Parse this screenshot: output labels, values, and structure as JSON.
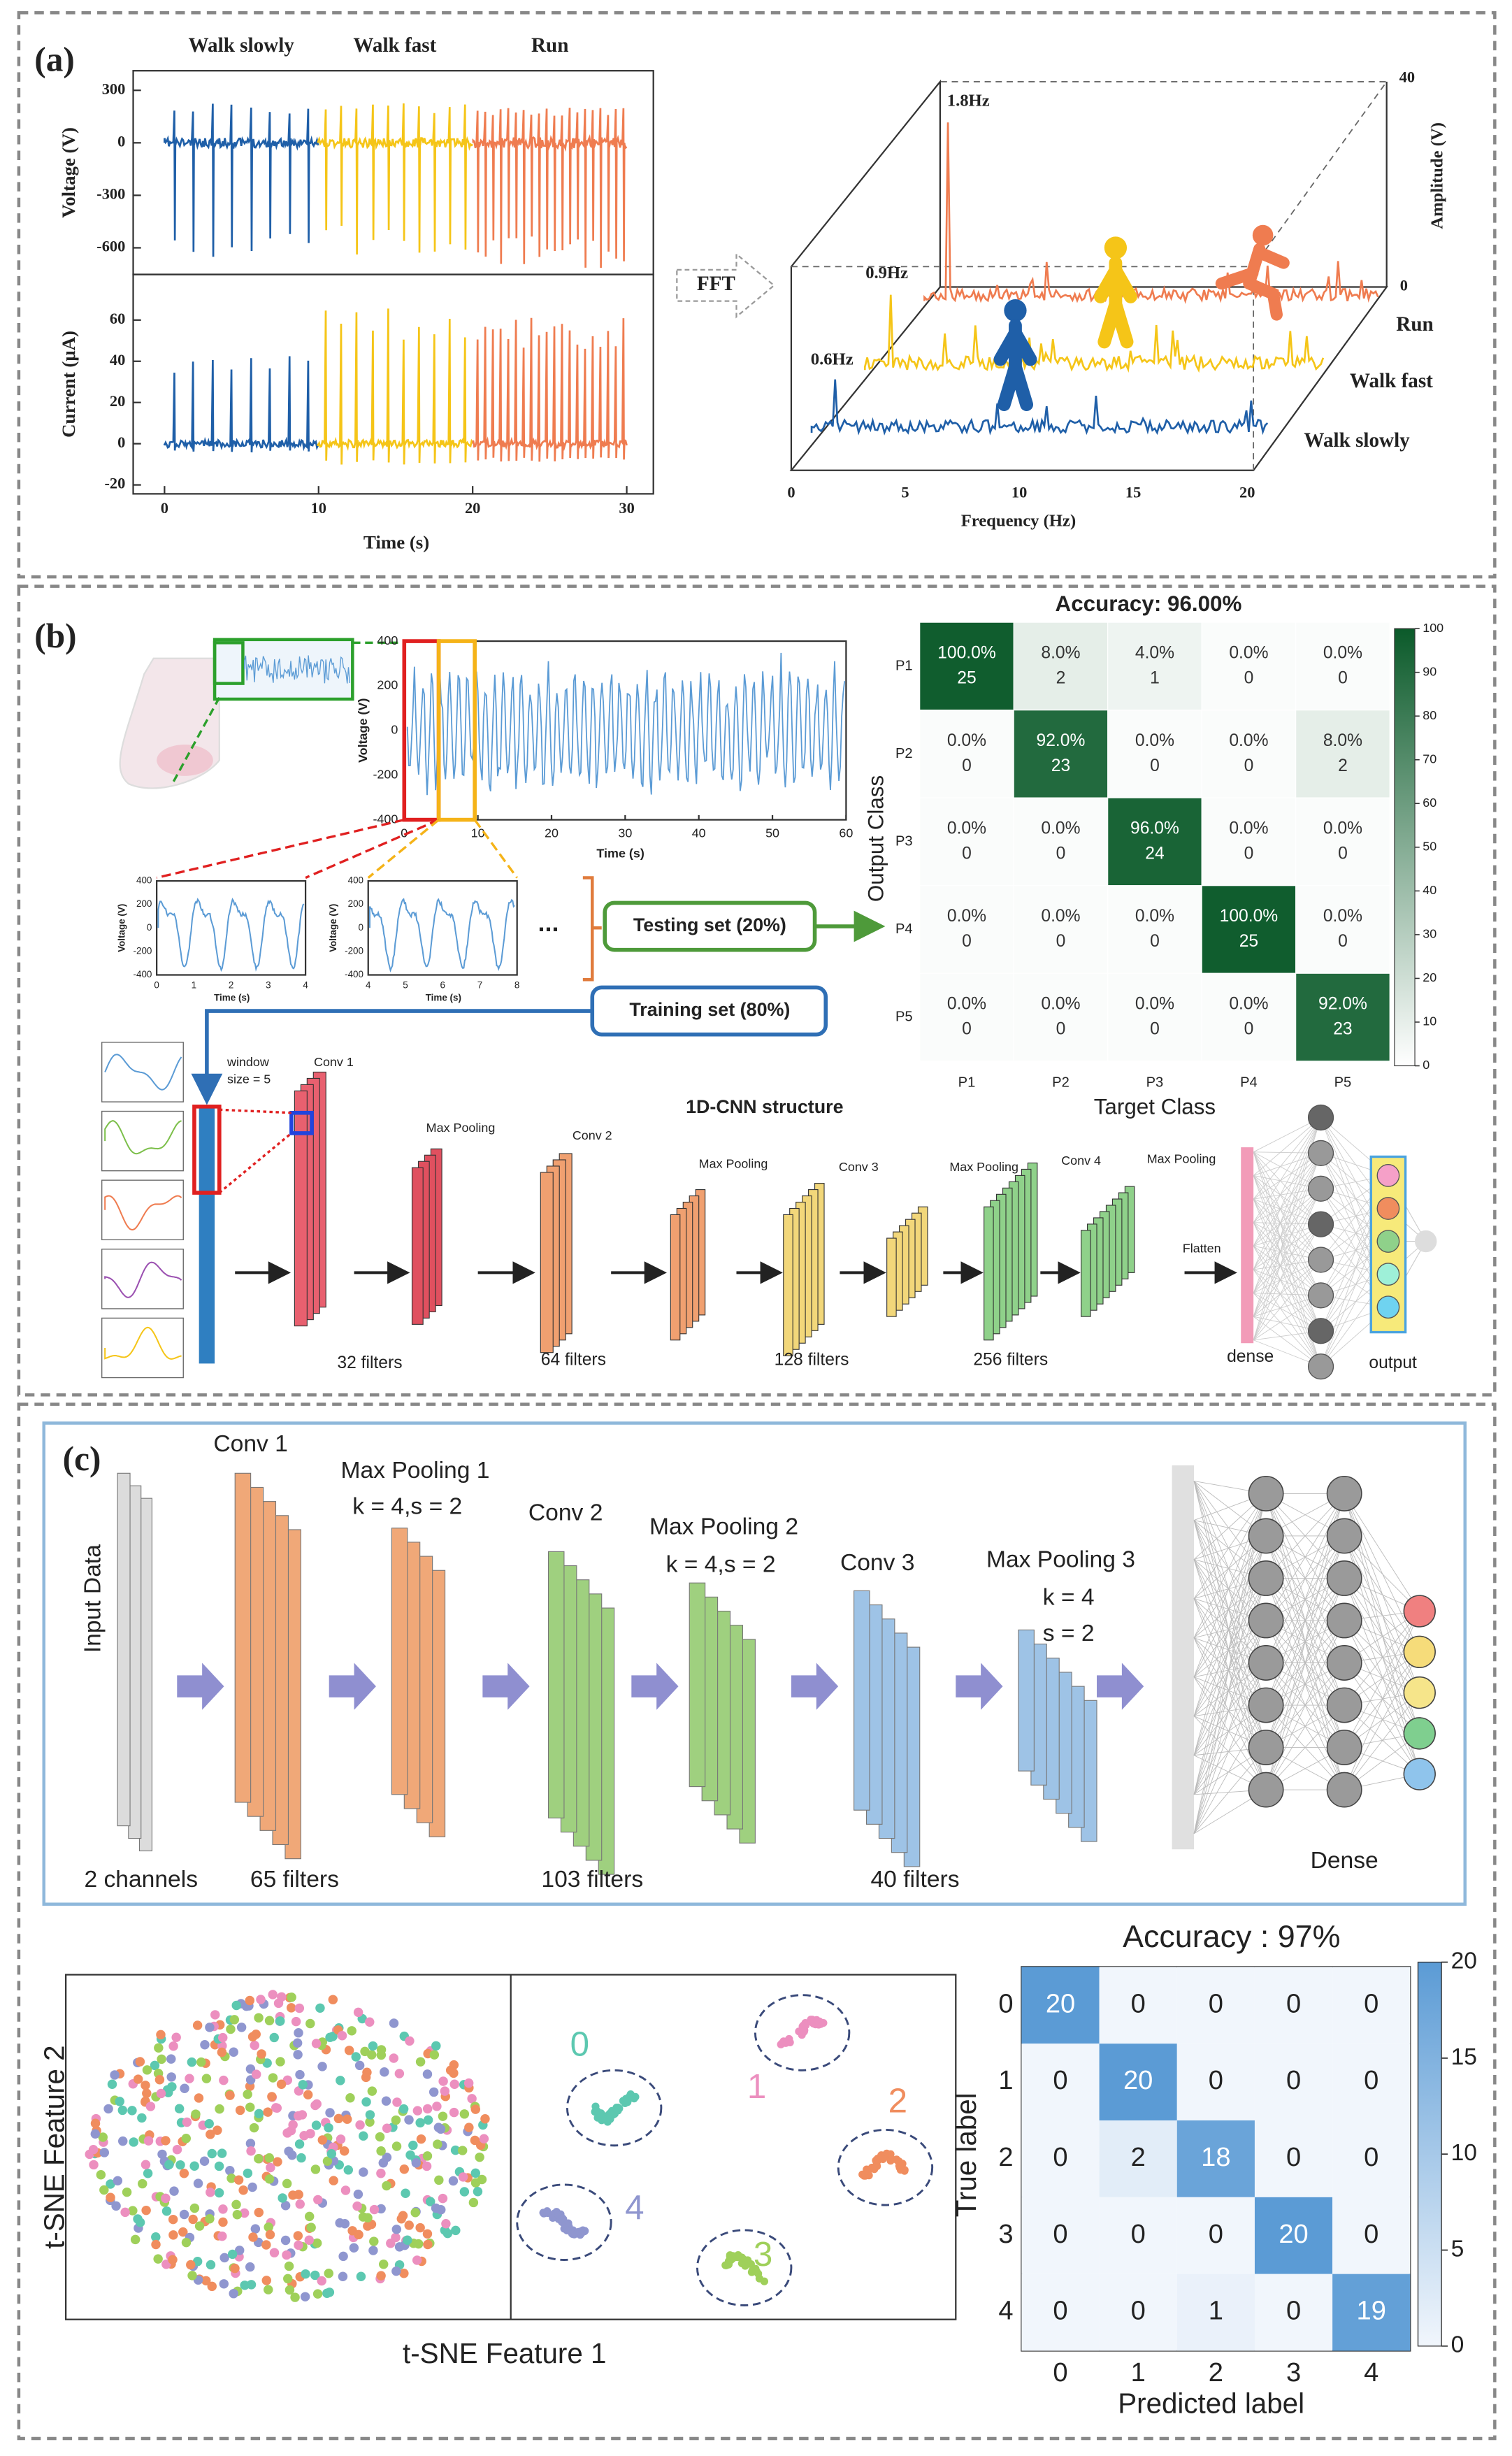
{
  "panel_a": {
    "label": "(a)",
    "phases": [
      "Walk slowly",
      "Walk fast",
      "Run"
    ],
    "voltage": {
      "label": "Voltage (V)",
      "ticks": [
        300,
        0,
        -300,
        -600
      ]
    },
    "current": {
      "label": "Current (μA)",
      "ticks": [
        60,
        40,
        20,
        0,
        -20
      ]
    },
    "time": {
      "label": "Time (s)",
      "ticks": [
        0,
        10,
        20,
        30
      ]
    },
    "fft_arrow": "FFT",
    "spectrum": {
      "peaks": [
        "1.8Hz",
        "0.9Hz",
        "0.6Hz"
      ],
      "series": [
        "Run",
        "Walk fast",
        "Walk slowly"
      ],
      "amplitude": {
        "label": "Amplitude (V)",
        "ticks": [
          40,
          0
        ]
      },
      "frequency": {
        "label": "Frequency (Hz)",
        "ticks": [
          0,
          5,
          10,
          15,
          20
        ]
      }
    }
  },
  "panel_b": {
    "label": "(b)",
    "signal": {
      "voltage": {
        "label": "Voltage (V)",
        "ticks": [
          400,
          200,
          0,
          -200,
          -400
        ]
      },
      "time": {
        "label": "Time (s)",
        "ticks": [
          0,
          10,
          20,
          30,
          40,
          50,
          60
        ]
      }
    },
    "windows": [
      {
        "voltage": {
          "label": "Voltage (V)",
          "ticks": [
            400,
            200,
            0,
            -200,
            -400
          ]
        },
        "time": {
          "label": "Time (s)",
          "ticks": [
            0,
            1,
            2,
            3,
            4
          ]
        }
      },
      {
        "voltage": {
          "label": "Voltage (V)",
          "ticks": [
            400,
            200,
            0,
            -200,
            -400
          ]
        },
        "time": {
          "label": "Time (s)",
          "ticks": [
            4,
            5,
            6,
            7,
            8
          ]
        }
      }
    ],
    "ellipsis": "...",
    "testing_set": "Testing set (20%)",
    "training_set": "Training set (80%)",
    "cnn": {
      "title": "1D-CNN structure",
      "window": [
        "window",
        "size = 5"
      ],
      "labels": [
        "Conv 1",
        "Max Pooling",
        "Conv 2",
        "Max Pooling",
        "Conv 3",
        "Max Pooling",
        "Conv 4",
        "Max Pooling",
        "Flatten"
      ],
      "filters": [
        "32 filters",
        "64 filters",
        "128 filters",
        "256 filters"
      ],
      "dense": "dense",
      "output": "output"
    },
    "confusion": {
      "title": "Accuracy: 96.00%",
      "y_label": "Output Class",
      "x_label": "Target Class",
      "rows": [
        "P1",
        "P2",
        "P3",
        "P4",
        "P5"
      ],
      "columns": [
        "P1",
        "P2",
        "P3",
        "P4",
        "P5"
      ],
      "cells": [
        [
          {
            "percent": {
              "value": 100,
              "label": "100.0%"
            },
            "count": 25
          },
          {
            "percent": {
              "value": 8,
              "label": "8.0%"
            },
            "count": 2
          },
          {
            "percent": {
              "value": 4,
              "label": "4.0%"
            },
            "count": 1
          },
          {
            "percent": {
              "value": 0,
              "label": "0.0%"
            },
            "count": 0
          },
          {
            "percent": {
              "value": 0,
              "label": "0.0%"
            },
            "count": 0
          }
        ],
        [
          {
            "percent": {
              "value": 0,
              "label": "0.0%"
            },
            "count": 0
          },
          {
            "percent": {
              "value": 92,
              "label": "92.0%"
            },
            "count": 23
          },
          {
            "percent": {
              "value": 0,
              "label": "0.0%"
            },
            "count": 0
          },
          {
            "percent": {
              "value": 0,
              "label": "0.0%"
            },
            "count": 0
          },
          {
            "percent": {
              "value": 8,
              "label": "8.0%"
            },
            "count": 2
          }
        ],
        [
          {
            "percent": {
              "value": 0,
              "label": "0.0%"
            },
            "count": 0
          },
          {
            "percent": {
              "value": 0,
              "label": "0.0%"
            },
            "count": 0
          },
          {
            "percent": {
              "value": 96,
              "label": "96.0%"
            },
            "count": 24
          },
          {
            "percent": {
              "value": 0,
              "label": "0.0%"
            },
            "count": 0
          },
          {
            "percent": {
              "value": 0,
              "label": "0.0%"
            },
            "count": 0
          }
        ],
        [
          {
            "percent": {
              "value": 0,
              "label": "0.0%"
            },
            "count": 0
          },
          {
            "percent": {
              "value": 0,
              "label": "0.0%"
            },
            "count": 0
          },
          {
            "percent": {
              "value": 0,
              "label": "0.0%"
            },
            "count": 0
          },
          {
            "percent": {
              "value": 100,
              "label": "100.0%"
            },
            "count": 25
          },
          {
            "percent": {
              "value": 0,
              "label": "0.0%"
            },
            "count": 0
          }
        ],
        [
          {
            "percent": {
              "value": 0,
              "label": "0.0%"
            },
            "count": 0
          },
          {
            "percent": {
              "value": 0,
              "label": "0.0%"
            },
            "count": 0
          },
          {
            "percent": {
              "value": 0,
              "label": "0.0%"
            },
            "count": 0
          },
          {
            "percent": {
              "value": 0,
              "label": "0.0%"
            },
            "count": 0
          },
          {
            "percent": {
              "value": 92,
              "label": "92.0%"
            },
            "count": 23
          }
        ]
      ],
      "colorbar": [
        0,
        10,
        20,
        30,
        40,
        50,
        60,
        70,
        80,
        90,
        100
      ]
    }
  },
  "panel_c": {
    "label": "(c)",
    "cnn": {
      "input": "Input Data",
      "channels": "2 channels",
      "labels": [
        "Conv 1",
        "Max Pooling 1",
        "k = 4,s = 2",
        "Conv 2",
        "Max Pooling 2",
        "k = 4,s = 2",
        "Conv 3",
        "Max Pooling 3",
        "k = 4",
        "s = 2"
      ],
      "filters": [
        "65 filters",
        "103 filters",
        "40 filters"
      ],
      "dense": "Dense"
    },
    "tsne": {
      "y_label": "t-SNE Feature 2",
      "x_label": "t-SNE Feature 1",
      "clusters": [
        "0",
        "1",
        "2",
        "3",
        "4"
      ]
    },
    "confusion": {
      "title": "Accuracy : 97%",
      "y_label": "True label",
      "x_label": "Predicted label",
      "rows": [
        0,
        1,
        2,
        3,
        4
      ],
      "columns": [
        0,
        1,
        2,
        3,
        4
      ],
      "cells": [
        [
          20,
          0,
          0,
          0,
          0
        ],
        [
          0,
          20,
          0,
          0,
          0
        ],
        [
          0,
          2,
          18,
          0,
          0
        ],
        [
          0,
          0,
          0,
          20,
          0
        ],
        [
          0,
          0,
          1,
          0,
          19
        ]
      ],
      "colorbar": [
        0,
        5,
        10,
        15,
        20
      ]
    }
  }
}
